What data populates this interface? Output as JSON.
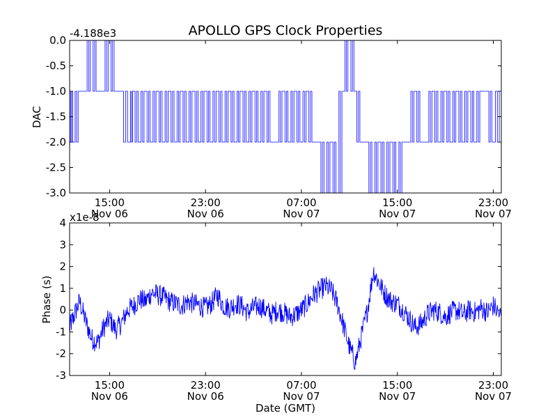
{
  "chart_data": [
    {
      "type": "line",
      "title": "APOLLO GPS Clock Properties",
      "ylabel": "DAC",
      "xlabel": "",
      "offset_label": "-4.188e3",
      "series_color": "#0000ff",
      "grid": false,
      "ylim": [
        -3.0,
        0.0
      ],
      "y_ticks": [
        "0.0",
        "-0.5",
        "-1.0",
        "-1.5",
        "-2.0",
        "-2.5",
        "-3.0"
      ],
      "x_ticks": [
        {
          "time": "15:00",
          "date": "Nov 06"
        },
        {
          "time": "23:00",
          "date": "Nov 06"
        },
        {
          "time": "07:00",
          "date": "Nov 07"
        },
        {
          "time": "15:00",
          "date": "Nov 07"
        },
        {
          "time": "23:00",
          "date": "Nov 07"
        }
      ],
      "xlim": [
        "Nov 06 11:40",
        "Nov 07 23:40"
      ],
      "series": [
        {
          "x": [
            "Nov 06 11:40",
            "Nov 06 12:00",
            "Nov 06 12:30",
            "Nov 06 13:00",
            "Nov 06 13:30",
            "Nov 06 14:00",
            "Nov 06 14:30",
            "Nov 06 15:00",
            "Nov 06 15:30",
            "Nov 06 16:00",
            "Nov 06 16:40",
            "Nov 06 17:00",
            "Nov 06 17:30",
            "Nov 06 18:00",
            "Nov 06 18:30",
            "Nov 06 19:00",
            "Nov 06 19:30",
            "Nov 06 20:00",
            "Nov 06 20:30",
            "Nov 06 21:00",
            "Nov 06 21:30",
            "Nov 06 22:00",
            "Nov 06 22:30",
            "Nov 06 23:00",
            "Nov 06 23:30",
            "Nov 07 00:00",
            "Nov 07 00:30",
            "Nov 07 01:00",
            "Nov 07 01:30",
            "Nov 07 02:00",
            "Nov 07 02:30",
            "Nov 07 03:00",
            "Nov 07 03:30",
            "Nov 07 04:00",
            "Nov 07 04:30",
            "Nov 07 05:00",
            "Nov 07 05:30",
            "Nov 07 06:00",
            "Nov 07 06:30",
            "Nov 07 07:00",
            "Nov 07 07:30",
            "Nov 07 08:00",
            "Nov 07 08:30",
            "Nov 07 09:00",
            "Nov 07 09:30",
            "Nov 07 10:00",
            "Nov 07 10:30",
            "Nov 07 11:00",
            "Nov 07 11:30",
            "Nov 07 12:00",
            "Nov 07 12:30",
            "Nov 07 13:00",
            "Nov 07 13:30",
            "Nov 07 14:00",
            "Nov 07 14:30",
            "Nov 07 15:00",
            "Nov 07 15:30",
            "Nov 07 16:00",
            "Nov 07 16:30",
            "Nov 07 17:00",
            "Nov 07 17:30",
            "Nov 07 18:00",
            "Nov 07 18:30",
            "Nov 07 19:00",
            "Nov 07 19:30",
            "Nov 07 20:00",
            "Nov 07 20:30",
            "Nov 07 21:00",
            "Nov 07 21:30",
            "Nov 07 22:00",
            "Nov 07 22:30",
            "Nov 07 23:00",
            "Nov 07 23:40"
          ],
          "values": [
            -1.0,
            -2.0,
            -1.0,
            -1.0,
            0.0,
            -1.0,
            -1.0,
            0.0,
            -1.0,
            -1.0,
            -2.0,
            -1.0,
            -2.0,
            -1.0,
            -2.0,
            -1.0,
            -2.0,
            -1.0,
            -2.0,
            -1.0,
            -2.0,
            -1.0,
            -2.0,
            -1.0,
            -2.0,
            -1.0,
            -2.0,
            -1.0,
            -2.0,
            -1.0,
            -2.0,
            -1.0,
            -2.0,
            -1.0,
            -2.0,
            -2.0,
            -1.0,
            -2.0,
            -1.0,
            -2.0,
            -1.0,
            -2.0,
            -2.0,
            -3.0,
            -2.0,
            -3.0,
            -1.0,
            0.0,
            -1.0,
            -2.0,
            -2.0,
            -3.0,
            -2.0,
            -3.0,
            -2.0,
            -3.0,
            -2.0,
            -2.0,
            -1.0,
            -2.0,
            -2.0,
            -1.0,
            -2.0,
            -1.0,
            -2.0,
            -1.0,
            -2.0,
            -1.0,
            -2.0,
            -1.0,
            -1.0,
            -2.0,
            -1.0
          ]
        }
      ]
    },
    {
      "type": "line",
      "title": "",
      "ylabel": "Phase (s)",
      "xlabel": "Date (GMT)",
      "scale_label": "x1e-8",
      "series_color": "#0000ff",
      "grid": false,
      "ylim": [
        -3,
        4
      ],
      "y_ticks": [
        "4",
        "3",
        "2",
        "1",
        "0",
        "-1",
        "-2",
        "-3"
      ],
      "x_ticks": [
        {
          "time": "15:00",
          "date": "Nov 06"
        },
        {
          "time": "23:00",
          "date": "Nov 06"
        },
        {
          "time": "07:00",
          "date": "Nov 07"
        },
        {
          "time": "15:00",
          "date": "Nov 07"
        },
        {
          "time": "23:00",
          "date": "Nov 07"
        }
      ],
      "xlim": [
        "Nov 06 11:40",
        "Nov 07 23:40"
      ],
      "series": [
        {
          "x": [
            "Nov 06 11:40",
            "Nov 06 12:00",
            "Nov 06 12:30",
            "Nov 06 13:00",
            "Nov 06 13:30",
            "Nov 06 14:00",
            "Nov 06 14:30",
            "Nov 06 15:00",
            "Nov 06 15:30",
            "Nov 06 16:00",
            "Nov 06 16:30",
            "Nov 06 17:00",
            "Nov 06 17:30",
            "Nov 06 18:00",
            "Nov 06 18:30",
            "Nov 06 19:00",
            "Nov 06 19:30",
            "Nov 06 20:00",
            "Nov 06 20:30",
            "Nov 06 21:00",
            "Nov 06 21:30",
            "Nov 06 22:00",
            "Nov 06 22:30",
            "Nov 06 23:00",
            "Nov 06 23:30",
            "Nov 07 00:00",
            "Nov 07 00:30",
            "Nov 07 01:00",
            "Nov 07 01:30",
            "Nov 07 02:00",
            "Nov 07 02:30",
            "Nov 07 03:00",
            "Nov 07 03:30",
            "Nov 07 04:00",
            "Nov 07 04:30",
            "Nov 07 05:00",
            "Nov 07 05:30",
            "Nov 07 06:00",
            "Nov 07 06:30",
            "Nov 07 07:00",
            "Nov 07 07:30",
            "Nov 07 08:00",
            "Nov 07 08:30",
            "Nov 07 09:00",
            "Nov 07 09:30",
            "Nov 07 10:00",
            "Nov 07 10:30",
            "Nov 07 11:00",
            "Nov 07 11:30",
            "Nov 07 12:00",
            "Nov 07 12:30",
            "Nov 07 13:00",
            "Nov 07 13:30",
            "Nov 07 14:00",
            "Nov 07 14:30",
            "Nov 07 15:00",
            "Nov 07 15:30",
            "Nov 07 16:00",
            "Nov 07 16:30",
            "Nov 07 17:00",
            "Nov 07 17:30",
            "Nov 07 18:00",
            "Nov 07 18:30",
            "Nov 07 19:00",
            "Nov 07 19:30",
            "Nov 07 20:00",
            "Nov 07 20:30",
            "Nov 07 21:00",
            "Nov 07 21:30",
            "Nov 07 22:00",
            "Nov 07 22:30",
            "Nov 07 23:00",
            "Nov 07 23:40"
          ],
          "values": [
            -0.8,
            -0.3,
            0.4,
            -0.5,
            -1.3,
            -1.5,
            -0.8,
            -0.4,
            -0.9,
            -0.6,
            0.0,
            0.2,
            0.5,
            0.4,
            0.8,
            0.7,
            0.6,
            0.4,
            0.3,
            0.2,
            0.4,
            0.3,
            0.2,
            0.1,
            0.3,
            0.7,
            0.2,
            0.1,
            0.3,
            0.2,
            -0.1,
            0.1,
            0.2,
            0.0,
            -0.2,
            0.0,
            -0.1,
            -0.3,
            -0.2,
            0.0,
            0.3,
            0.7,
            0.9,
            1.1,
            0.9,
            0.3,
            -0.7,
            -1.7,
            -2.4,
            -1.2,
            0.0,
            1.8,
            1.2,
            0.7,
            0.4,
            0.3,
            0.0,
            -0.4,
            -0.8,
            -0.6,
            -0.2,
            0.0,
            -0.1,
            -0.3,
            -0.1,
            0.0,
            -0.2,
            0.0,
            -0.1,
            0.1,
            -0.1,
            0.2,
            -0.3
          ]
        }
      ]
    }
  ]
}
